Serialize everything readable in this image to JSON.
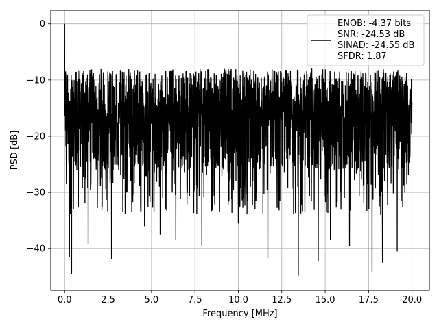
{
  "chart_data": {
    "type": "line",
    "xlabel": "Frequency [MHz]",
    "ylabel": "PSD [dB]",
    "xlim": [
      -0.8,
      21.0
    ],
    "ylim": [
      -47.4,
      2.4
    ],
    "x_ticks": [
      0.0,
      2.5,
      5.0,
      7.5,
      10.0,
      12.5,
      15.0,
      17.5,
      20.0
    ],
    "x_tick_labels": [
      "0.0",
      "2.5",
      "5.0",
      "7.5",
      "10.0",
      "12.5",
      "15.0",
      "17.5",
      "20.0"
    ],
    "y_ticks": [
      0,
      -10,
      -20,
      -30,
      -40
    ],
    "y_tick_labels": [
      "0",
      "−10",
      "−20",
      "−30",
      "−40"
    ],
    "grid": true,
    "legend_position": "top-right",
    "series": [
      {
        "name": "ENOB: -4.37 bits\nSNR: -24.53 dB\nSINAD: -24.55 dB\nSFDR: 1.87",
        "color": "#000000",
        "description": "dense noise-like PSD trace, 0 to 20 MHz",
        "x_start": 0.0,
        "x_end": 20.0,
        "peak": {
          "x": 0.0,
          "y": 0.0
        },
        "typical_upper_envelope": -8,
        "typical_lower_envelope": -27,
        "notable_dips": [
          {
            "x": 0.28,
            "y": -41.5
          },
          {
            "x": 0.4,
            "y": -44.5
          },
          {
            "x": 1.35,
            "y": -39.2
          },
          {
            "x": 2.7,
            "y": -41.8
          },
          {
            "x": 4.6,
            "y": -36.0
          },
          {
            "x": 5.5,
            "y": -37.5
          },
          {
            "x": 6.4,
            "y": -38.5
          },
          {
            "x": 7.9,
            "y": -39.5
          },
          {
            "x": 10.0,
            "y": -35.5
          },
          {
            "x": 11.7,
            "y": -41.7
          },
          {
            "x": 13.45,
            "y": -44.8
          },
          {
            "x": 14.6,
            "y": -42.3
          },
          {
            "x": 15.3,
            "y": -38.5
          },
          {
            "x": 16.4,
            "y": -39.5
          },
          {
            "x": 17.7,
            "y": -44.2
          },
          {
            "x": 18.3,
            "y": -42.5
          },
          {
            "x": 19.15,
            "y": -40.5
          }
        ]
      }
    ]
  },
  "legend": {
    "line_color": "#000000",
    "lines": [
      "ENOB: -4.37 bits",
      "SNR: -24.53 dB",
      "SINAD: -24.55 dB",
      "SFDR: 1.87"
    ]
  },
  "colors": {
    "trace": "#000000",
    "grid": "#b0b0b0",
    "axes": "#000000",
    "background": "#ffffff"
  }
}
